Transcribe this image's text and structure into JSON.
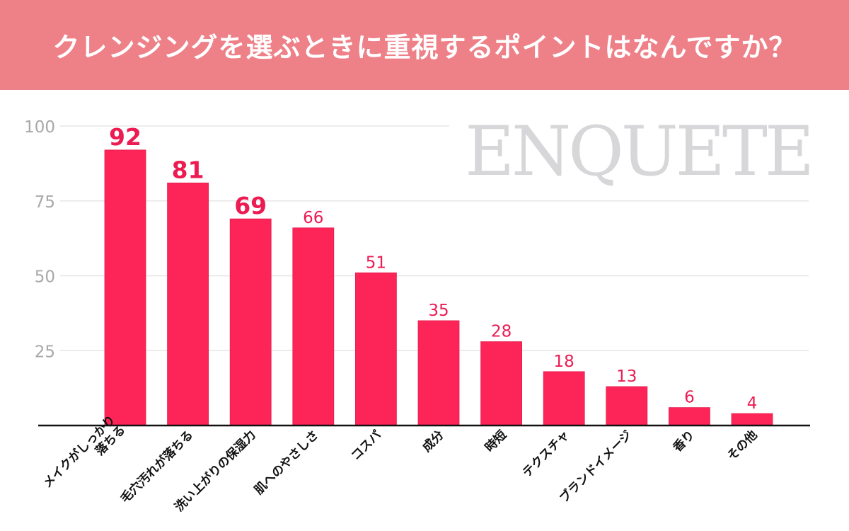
{
  "header": {
    "title": "クレンジングを選ぶときに重視するポイントはなんですか？"
  },
  "watermark": {
    "text": "ENQUETE"
  },
  "colors": {
    "header_bg": "#ee8088",
    "bar": "#fd2458",
    "bar_edge": "#e21f4f",
    "label": "#ec1b52",
    "grid": "#e6e6e6",
    "tick": "#a8a8a8",
    "axis": "#111111",
    "watermark": "#d7d7da"
  },
  "chart_data": {
    "type": "bar",
    "title": "クレンジングを選ぶときに重視するポイントはなんですか？",
    "xlabel": "",
    "ylabel": "",
    "ylim": [
      0,
      100
    ],
    "yticks": [
      25,
      50,
      75,
      100
    ],
    "grid": true,
    "categories": [
      [
        "メイクがしっかり",
        "落ちる"
      ],
      [
        "毛穴汚れが落ちる"
      ],
      [
        "洗い上がりの保湿力"
      ],
      [
        "肌へのやさしさ"
      ],
      [
        "コスパ"
      ],
      [
        "成分"
      ],
      [
        "時短"
      ],
      [
        "テクスチャ"
      ],
      [
        "ブランドイメージ"
      ],
      [
        "香り"
      ],
      [
        "その他"
      ]
    ],
    "values": [
      92,
      81,
      69,
      66,
      51,
      35,
      28,
      18,
      13,
      6,
      4
    ],
    "labels": [
      "92",
      "81",
      "69",
      "66",
      "51",
      "35",
      "28",
      "18",
      "13",
      "6",
      "4"
    ],
    "emphasized_label_count": 3
  }
}
